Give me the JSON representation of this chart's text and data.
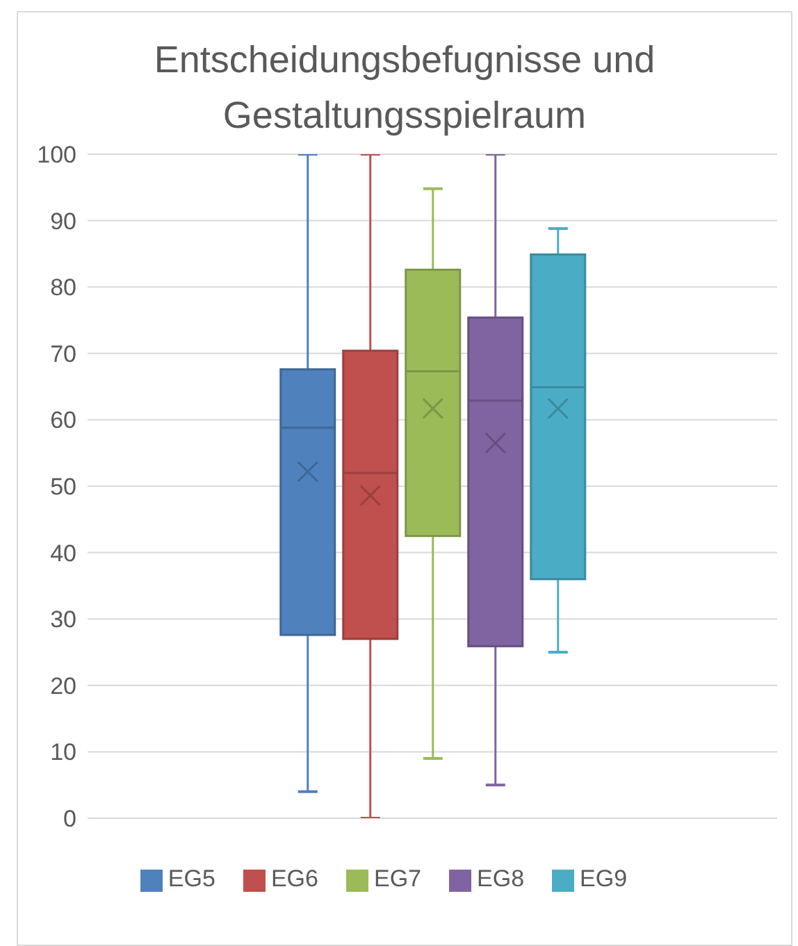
{
  "chart_data": {
    "type": "box",
    "title": "Entscheidungsbefugnisse und Gestaltungsspielraum",
    "categories": [
      null
    ],
    "ylim": [
      0,
      100
    ],
    "yticks": [
      0,
      10,
      20,
      30,
      40,
      50,
      60,
      70,
      80,
      90,
      100
    ],
    "grid": "y",
    "legend": "bottom",
    "series": [
      {
        "name": "EG5",
        "color": "#4f81bd",
        "boxes": [
          {
            "low": 4,
            "q1": 27.6,
            "median": 58.8,
            "q3": 67.6,
            "high": 100,
            "mean": 52.2
          }
        ]
      },
      {
        "name": "EG6",
        "color": "#c0504d",
        "boxes": [
          {
            "low": 0,
            "q1": 27,
            "median": 52,
            "q3": 70.4,
            "high": 100,
            "mean": 48.6
          }
        ]
      },
      {
        "name": "EG7",
        "color": "#9bbb59",
        "boxes": [
          {
            "low": 9,
            "q1": 42.5,
            "median": 67.3,
            "q3": 82.6,
            "high": 94.8,
            "mean": 61.7
          }
        ]
      },
      {
        "name": "EG8",
        "color": "#8064a2",
        "boxes": [
          {
            "low": 5,
            "q1": 25.9,
            "median": 62.9,
            "q3": 75.4,
            "high": 100,
            "mean": 56.5
          }
        ]
      },
      {
        "name": "EG9",
        "color": "#4bacc6",
        "boxes": [
          {
            "low": 25,
            "q1": 36,
            "median": 64.9,
            "q3": 84.9,
            "high": 88.8,
            "mean": 61.7
          }
        ]
      }
    ]
  }
}
